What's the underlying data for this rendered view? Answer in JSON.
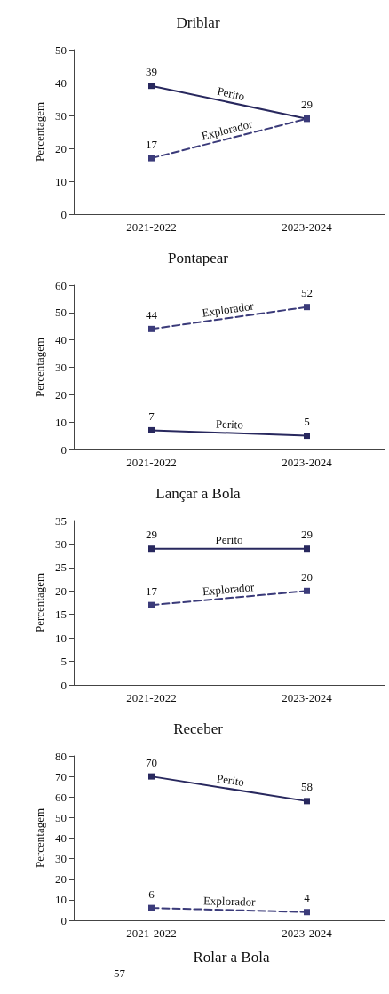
{
  "chart_data": [
    {
      "type": "line",
      "title": "Driblar",
      "ylabel": "Percentagem",
      "categories": [
        "2021-2022",
        "2023-2024"
      ],
      "ylim": [
        0,
        50
      ],
      "yticks": [
        0,
        10,
        20,
        30,
        40,
        50
      ],
      "grid": false,
      "legend": false,
      "marker": "square",
      "series": [
        {
          "name": "Perito",
          "color": "#28285e",
          "values": [
            39,
            29
          ],
          "value_labels": [
            "39",
            "29"
          ],
          "line_style": "solid"
        },
        {
          "name": "Explorador",
          "color": "#3b3b7a",
          "values": [
            17,
            29
          ],
          "value_labels": [
            "17",
            null
          ],
          "line_style": "dashed"
        }
      ]
    },
    {
      "type": "line",
      "title": "Pontapear",
      "ylabel": "Percentagem",
      "categories": [
        "2021-2022",
        "2023-2024"
      ],
      "ylim": [
        0,
        60
      ],
      "yticks": [
        0,
        10,
        20,
        30,
        40,
        50,
        60
      ],
      "grid": false,
      "legend": false,
      "marker": "square",
      "data_labels": true,
      "series": [
        {
          "name": "Explorador",
          "color": "#3b3b7a",
          "values": [
            44,
            52
          ],
          "line_style": "dashed"
        },
        {
          "name": "Perito",
          "color": "#28285e",
          "values": [
            7,
            5
          ],
          "line_style": "solid"
        }
      ]
    },
    {
      "type": "line",
      "title": "Lançar a Bola",
      "ylabel": "Percentagem",
      "categories": [
        "2021-2022",
        "2023-2024"
      ],
      "ylim": [
        0,
        35
      ],
      "yticks": [
        0,
        5,
        10,
        15,
        20,
        25,
        30,
        35
      ],
      "grid": false,
      "legend": false,
      "marker": "square",
      "data_labels": true,
      "series": [
        {
          "name": "Perito",
          "color": "#28285e",
          "values": [
            29,
            29
          ],
          "line_style": "solid"
        },
        {
          "name": "Explorador",
          "color": "#3b3b7a",
          "values": [
            17,
            20
          ],
          "line_style": "dashed"
        }
      ]
    },
    {
      "type": "line",
      "title": "Receber",
      "ylabel": "Percentagem",
      "categories": [
        "2021-2022",
        "2023-2024"
      ],
      "ylim": [
        0,
        80
      ],
      "yticks": [
        0,
        10,
        20,
        30,
        40,
        50,
        60,
        70,
        80
      ],
      "grid": false,
      "legend": false,
      "marker": "square",
      "data_labels": true,
      "series": [
        {
          "name": "Perito",
          "color": "#28285e",
          "values": [
            70,
            58
          ],
          "line_style": "solid"
        },
        {
          "name": "Explorador",
          "color": "#3b3b7a",
          "values": [
            6,
            4
          ],
          "line_style": "dashed"
        }
      ]
    },
    {
      "type": "other",
      "title": "Rolar a Bola",
      "annotations": [
        "57"
      ]
    }
  ]
}
